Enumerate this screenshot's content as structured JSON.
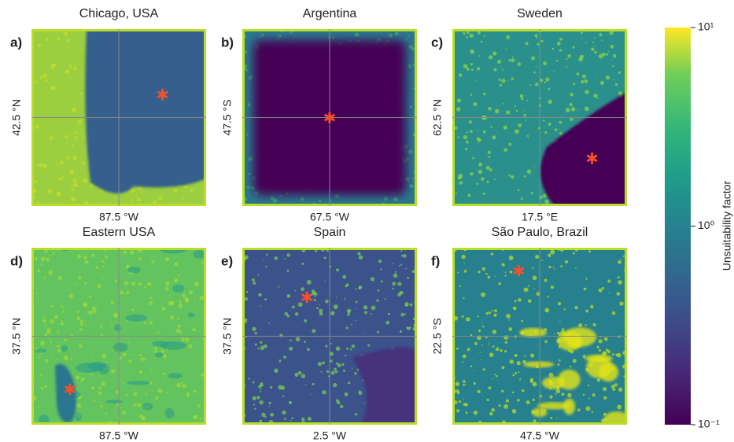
{
  "panels": [
    {
      "letter": "a)",
      "title": "Chicago, USA",
      "x_label": "87.5 °W",
      "y_label": "42.5 °N"
    },
    {
      "letter": "b)",
      "title": "Argentina",
      "x_label": "67.5 °W",
      "y_label": "47.5 °S"
    },
    {
      "letter": "c)",
      "title": "Sweden",
      "x_label": "17.5 °E",
      "y_label": "62.5 °N"
    },
    {
      "letter": "d)",
      "title": "Eastern USA",
      "x_label": "87.5 °W",
      "y_label": "37.5 °N"
    },
    {
      "letter": "e)",
      "title": "Spain",
      "x_label": "2.5 °W",
      "y_label": "37.5 °N"
    },
    {
      "letter": "f)",
      "title": "São Paulo, Brazil",
      "x_label": "47.5 °W",
      "y_label": "22.5 °S"
    }
  ],
  "colorbar": {
    "label": "Unsuitability factor",
    "log_scale": true,
    "lim": [
      0.1,
      10
    ],
    "ticks": [
      {
        "value": 0.1,
        "label": "10⁻¹"
      },
      {
        "value": 1,
        "label": "10⁰"
      },
      {
        "value": 10,
        "label": "10¹"
      }
    ]
  }
}
